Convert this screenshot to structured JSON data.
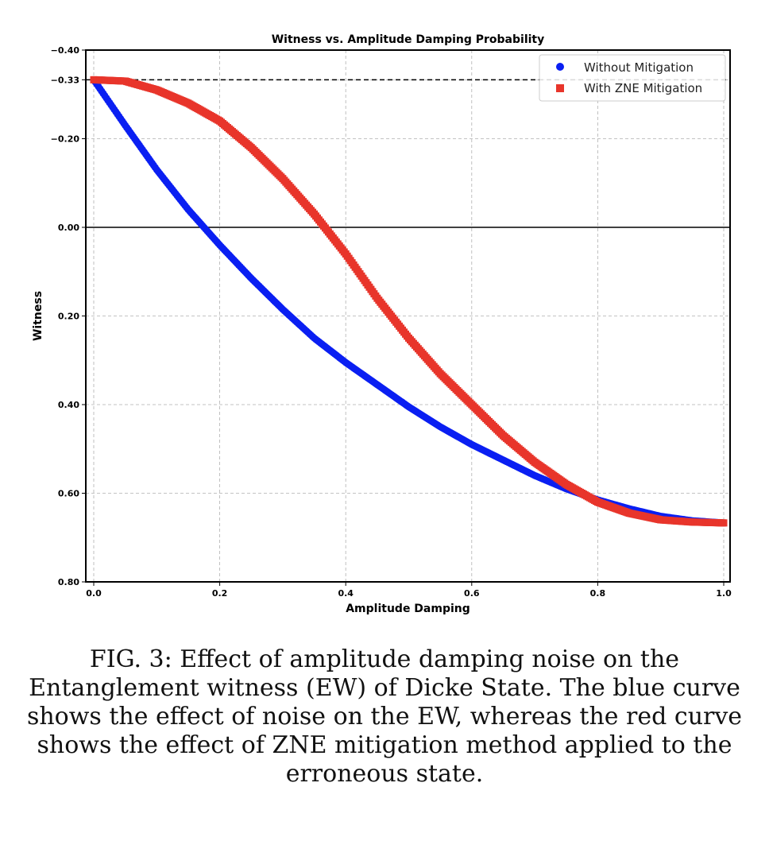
{
  "chart_data": {
    "type": "scatter",
    "title": "Witness vs. Amplitude Damping Probability",
    "xlabel": "Amplitude Damping",
    "ylabel": "Witness",
    "xlim": [
      0.0,
      1.0
    ],
    "ylim": [
      -0.4,
      0.8
    ],
    "y_inverted": true,
    "x_ticks": [
      "0.0",
      "0.2",
      "0.4",
      "0.6",
      "0.8",
      "1.0"
    ],
    "y_ticks": [
      {
        "value": -0.4,
        "label": "−0.40"
      },
      {
        "value": -0.333,
        "label": "−0.33"
      },
      {
        "value": -0.2,
        "label": "−0.20"
      },
      {
        "value": 0.0,
        "label": "0.00"
      },
      {
        "value": 0.2,
        "label": "0.20"
      },
      {
        "value": 0.4,
        "label": "0.40"
      },
      {
        "value": 0.6,
        "label": "0.60"
      },
      {
        "value": 0.8,
        "label": "0.80"
      }
    ],
    "grid": true,
    "reference_lines": [
      {
        "y": -0.333,
        "style": "dashed"
      },
      {
        "y": 0.0,
        "style": "solid"
      }
    ],
    "legend_position": "top-right",
    "series": [
      {
        "name": "Without Mitigation",
        "color": "#0a1ff2",
        "marker": "circle",
        "x": [
          0.0,
          0.05,
          0.1,
          0.15,
          0.2,
          0.25,
          0.3,
          0.35,
          0.4,
          0.45,
          0.5,
          0.55,
          0.6,
          0.65,
          0.7,
          0.75,
          0.8,
          0.85,
          0.9,
          0.95,
          1.0
        ],
        "y": [
          -0.333,
          -0.23,
          -0.13,
          -0.04,
          0.04,
          0.115,
          0.185,
          0.25,
          0.305,
          0.355,
          0.405,
          0.45,
          0.49,
          0.525,
          0.56,
          0.59,
          0.615,
          0.635,
          0.652,
          0.662,
          0.667
        ]
      },
      {
        "name": "With ZNE Mitigation",
        "color": "#e8352b",
        "marker": "square",
        "x": [
          0.0,
          0.05,
          0.1,
          0.15,
          0.2,
          0.25,
          0.3,
          0.35,
          0.4,
          0.45,
          0.5,
          0.55,
          0.6,
          0.65,
          0.7,
          0.75,
          0.8,
          0.85,
          0.9,
          0.95,
          1.0
        ],
        "y": [
          -0.333,
          -0.33,
          -0.31,
          -0.28,
          -0.24,
          -0.18,
          -0.11,
          -0.03,
          0.06,
          0.16,
          0.25,
          0.33,
          0.4,
          0.47,
          0.53,
          0.58,
          0.62,
          0.645,
          0.66,
          0.665,
          0.667
        ]
      }
    ]
  },
  "caption": "FIG. 3: Effect of amplitude damping noise on the Entanglement witness (EW) of Dicke State. The blue curve shows the effect of noise on the EW, whereas the red curve shows the effect of ZNE mitigation method applied to the erroneous state."
}
